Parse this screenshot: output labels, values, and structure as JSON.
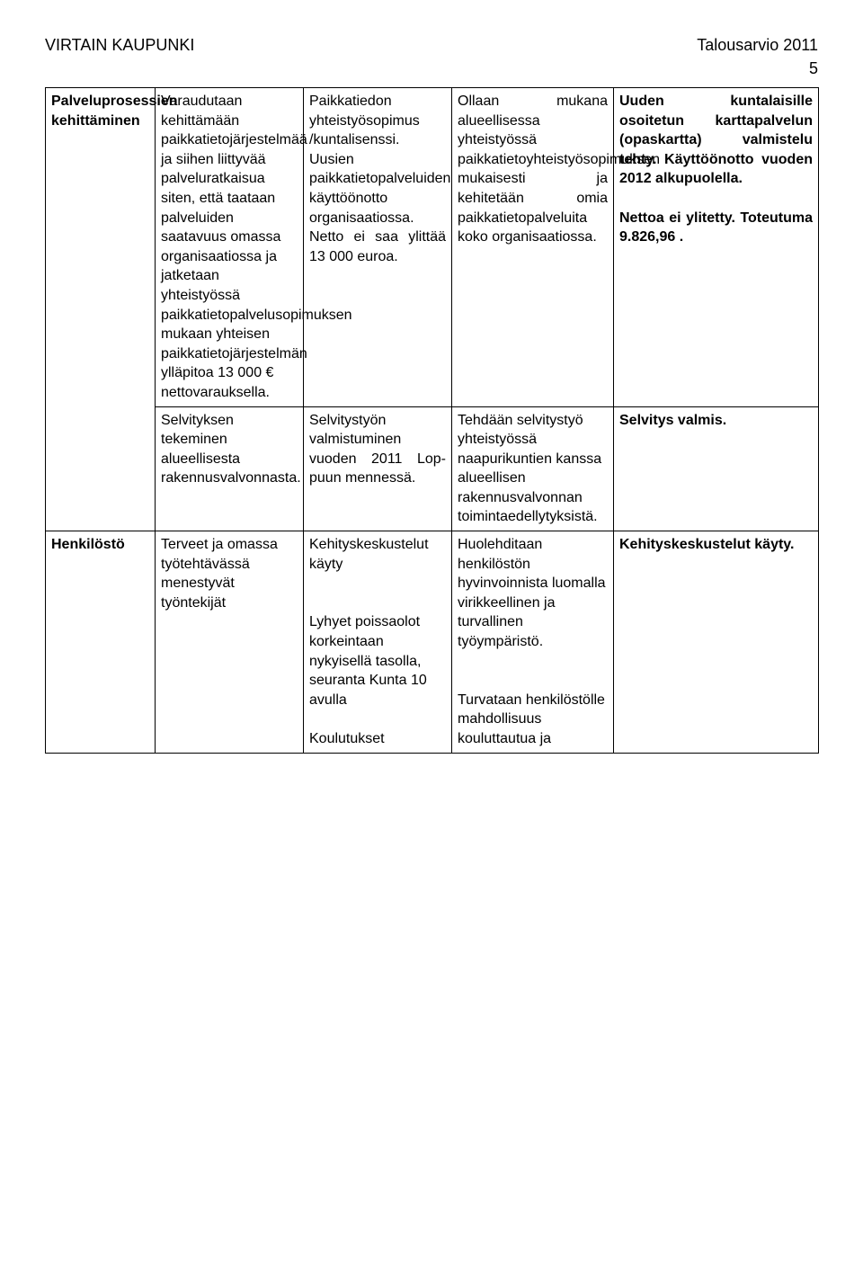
{
  "header": {
    "left": "VIRTAIN KAUPUNKI",
    "right": "Talousarvio 2011",
    "pageNumber": "5"
  },
  "rows": [
    {
      "c1": {
        "text": "Palveluprosessien kehittäminen",
        "bold": true
      },
      "c2": {
        "text": "Varaudutaan kehittämään paikkatietojärjestelmää ja siihen liittyvää palveluratkaisua siten, että taataan palveluiden saatavuus omassa organisaatiossa ja jatketaan yhteistyössä paikkatietopalvelusopimuksen mukaan yhteisen paikkatietojärjestelmän ylläpitoa 13 000 € nettovarauksella."
      },
      "c3": {
        "paragraphs": [
          "Paikkatiedon yhteistyösopimus /kuntalisenssi.",
          "Uusien paikkatietopalveluiden käyttöönotto organisaatiossa.",
          "Netto ei saa ylittää 13 000 euroa."
        ],
        "justified": true
      },
      "c4": {
        "text": "Ollaan mukana alueellisessa yhteistyössä paikkatietoyhteistyösopimuksen mukaisesti ja kehitetään omia paikkatietopalveluita koko organisaatiossa.",
        "justified": true
      },
      "c5": {
        "paragraphs_bold": [
          "Uuden kuntalaisille osoitetun karttapalvelun (opaskartta) valmistelu tehty. Käyttöönotto vuoden 2012 alkupuolella.",
          "",
          "Nettoa ei ylitetty. Toteutuma 9.826,96 ."
        ],
        "justified": true
      }
    },
    {
      "c1": {
        "text": ""
      },
      "c2": {
        "text": "Selvityksen tekeminen alueellisesta rakennusvalvonnasta."
      },
      "c3": {
        "text": "Selvitystyön valmistuminen vuoden 2011 Lop-puun mennessä.",
        "justified": true
      },
      "c4": {
        "text": "Tehdään selvitystyö yhteistyössä naapurikuntien kanssa alueellisen rakennusvalvonnan toimintaedellytyksistä."
      },
      "c5": {
        "text": "Selvitys valmis.",
        "bold": true
      }
    },
    {
      "c1": {
        "text": "Henkilöstö",
        "bold": true
      },
      "c2": {
        "text": "Terveet ja omassa työtehtävässä menestyvät työntekijät"
      },
      "c3": {
        "paragraphs": [
          "Kehityskeskustelut käyty",
          "",
          "",
          "Lyhyet poissaolot korkeintaan nykyisellä tasolla, seuranta Kunta 10 avulla",
          "",
          "Koulutukset"
        ]
      },
      "c4": {
        "paragraphs": [
          "Huolehditaan henkilöstön hyvinvoinnista luomalla virikkeellinen ja turvallinen työympäristö.",
          "",
          "",
          "Turvataan henkilöstölle mahdollisuus kouluttautua ja"
        ]
      },
      "c5": {
        "text": "Kehityskeskustelut käyty.",
        "bold": true
      }
    }
  ]
}
